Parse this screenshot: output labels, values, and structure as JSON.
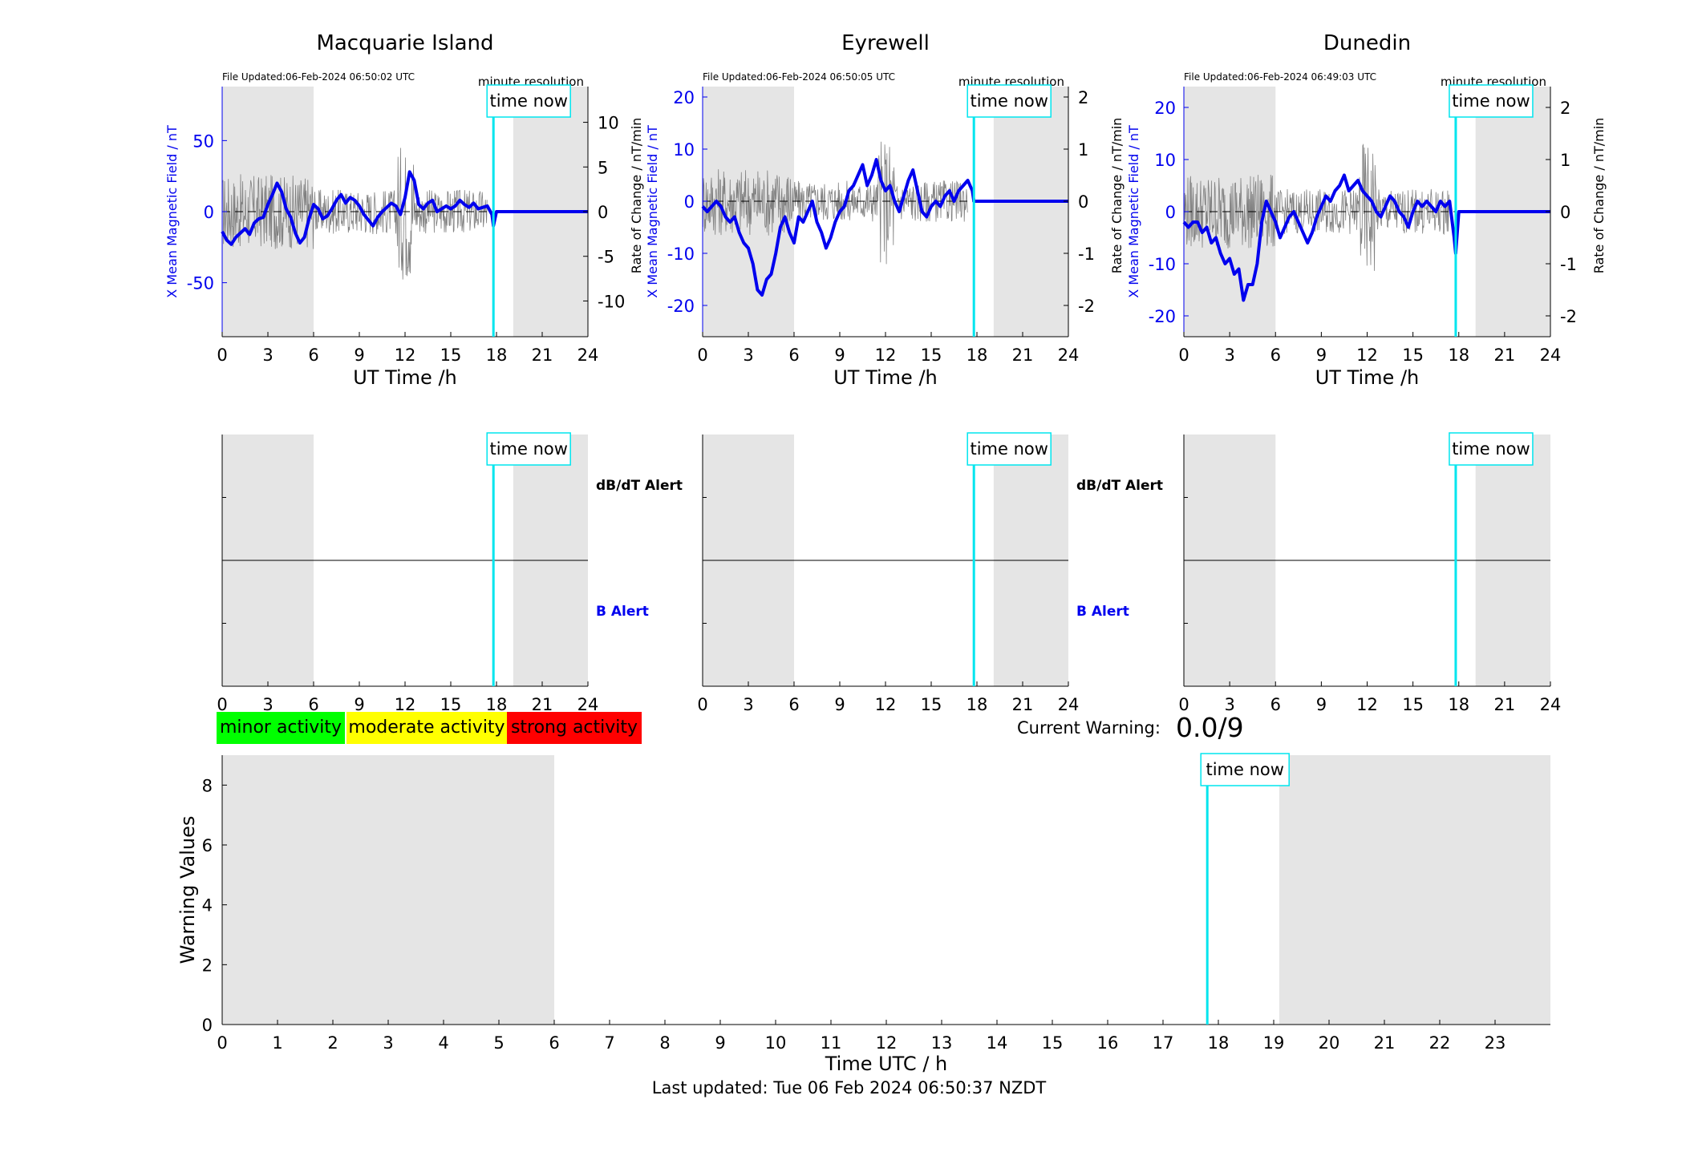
{
  "colors": {
    "magnetic_line": "#0000ee",
    "rate_line": "#808080",
    "time_now": "#00e5ee",
    "night_shade": "#e5e5e5",
    "minor": "#00ff00",
    "moderate": "#ffff00",
    "strong": "#ff0000"
  },
  "time_now_label": "time now",
  "resolution_label": "minute resolution",
  "alert_labels": {
    "dbdt": "dB/dT Alert",
    "b": "B Alert"
  },
  "legend": {
    "minor": "minor activity",
    "moderate": "moderate activity",
    "strong": "strong activity"
  },
  "current_warning": {
    "label": "Current Warning:",
    "value": "0.0/9"
  },
  "footer": "Last updated: Tue 06 Feb 2024 06:50:37 NZDT",
  "chart_data": [
    {
      "type": "line",
      "title": "Macquarie Island",
      "file_updated": "File Updated:06-Feb-2024 06:50:02 UTC",
      "xlabel": "UT Time /h",
      "ylabel": "X Mean Magnetic Field / nT",
      "y2label": "Rate of Change / nT/min",
      "xlim": [
        0,
        24
      ],
      "xticks": [
        0,
        3,
        6,
        9,
        12,
        15,
        18,
        21,
        24
      ],
      "ylim": [
        -88,
        88
      ],
      "yticks": [
        -50,
        0,
        50
      ],
      "y2lim": [
        -14,
        14
      ],
      "y2ticks": [
        -10,
        -5,
        0,
        5,
        10
      ],
      "time_now": 17.8,
      "night_periods": [
        [
          0,
          6
        ],
        [
          19.1,
          24
        ]
      ],
      "series": [
        {
          "x": [
            0,
            0.3,
            0.6,
            0.9,
            1.2,
            1.5,
            1.8,
            2.1,
            2.4,
            2.7,
            3.0,
            3.3,
            3.6,
            3.9,
            4.2,
            4.5,
            4.8,
            5.1,
            5.4,
            5.7,
            6.0,
            6.3,
            6.6,
            6.9,
            7.2,
            7.5,
            7.8,
            8.1,
            8.4,
            8.7,
            9.0,
            9.3,
            9.6,
            9.9,
            10.2,
            10.5,
            10.8,
            11.1,
            11.4,
            11.7,
            12.0,
            12.3,
            12.6,
            12.9,
            13.2,
            13.5,
            13.8,
            14.1,
            14.4,
            14.7,
            15.0,
            15.3,
            15.6,
            15.9,
            16.2,
            16.5,
            16.8,
            17.1,
            17.4,
            17.7,
            17.8,
            18.0,
            21.0,
            24.0
          ],
          "y": [
            -14,
            -20,
            -23,
            -18,
            -15,
            -12,
            -16,
            -8,
            -5,
            -4,
            5,
            12,
            20,
            14,
            2,
            -4,
            -15,
            -22,
            -18,
            -5,
            5,
            2,
            -5,
            -3,
            2,
            8,
            12,
            6,
            10,
            8,
            4,
            -2,
            -6,
            -10,
            -4,
            0,
            3,
            6,
            4,
            -2,
            10,
            28,
            22,
            5,
            2,
            6,
            8,
            0,
            2,
            4,
            2,
            4,
            8,
            5,
            3,
            6,
            2,
            3,
            4,
            -2,
            -10,
            0,
            0,
            0
          ]
        }
      ]
    },
    {
      "type": "line",
      "title": "Eyrewell",
      "file_updated": "File Updated:06-Feb-2024 06:50:05 UTC",
      "xlabel": "UT Time /h",
      "ylabel": "X Mean Magnetic Field / nT",
      "y2label": "Rate of Change / nT/min",
      "xlim": [
        0,
        24
      ],
      "xticks": [
        0,
        3,
        6,
        9,
        12,
        15,
        18,
        21,
        24
      ],
      "ylim": [
        -26,
        22
      ],
      "yticks": [
        -20,
        -10,
        0,
        10,
        20
      ],
      "y2lim": [
        -2.6,
        2.2
      ],
      "y2ticks": [
        -2,
        -1,
        0,
        1,
        2
      ],
      "time_now": 17.8,
      "night_periods": [
        [
          0,
          6
        ],
        [
          19.1,
          24
        ]
      ],
      "series": [
        {
          "x": [
            0,
            0.3,
            0.6,
            0.9,
            1.2,
            1.5,
            1.8,
            2.1,
            2.4,
            2.7,
            3.0,
            3.3,
            3.6,
            3.9,
            4.2,
            4.5,
            4.8,
            5.1,
            5.4,
            5.7,
            6.0,
            6.3,
            6.6,
            6.9,
            7.2,
            7.5,
            7.8,
            8.1,
            8.4,
            8.7,
            9.0,
            9.3,
            9.6,
            9.9,
            10.2,
            10.5,
            10.8,
            11.1,
            11.4,
            11.7,
            12.0,
            12.3,
            12.6,
            12.9,
            13.2,
            13.5,
            13.8,
            14.1,
            14.4,
            14.7,
            15.0,
            15.3,
            15.6,
            15.9,
            16.2,
            16.5,
            16.8,
            17.1,
            17.4,
            17.7,
            17.8,
            18.0,
            21.0,
            24.0
          ],
          "y": [
            -1,
            -2,
            -1,
            0,
            -1,
            -3,
            -4,
            -3,
            -6,
            -8,
            -9,
            -12,
            -17,
            -18,
            -15,
            -14,
            -10,
            -5,
            -3,
            -6,
            -8,
            -3,
            -4,
            -2,
            0,
            -4,
            -6,
            -9,
            -7,
            -4,
            -2,
            -1,
            2,
            3,
            5,
            7,
            3,
            5,
            8,
            4,
            2,
            3,
            0,
            -2,
            1,
            4,
            6,
            2,
            -2,
            -3,
            -1,
            0,
            -1,
            1,
            2,
            0,
            2,
            3,
            4,
            2,
            0,
            0,
            0,
            0
          ]
        }
      ]
    },
    {
      "type": "line",
      "title": "Dunedin",
      "file_updated": "File Updated:06-Feb-2024 06:49:03 UTC",
      "xlabel": "UT Time /h",
      "ylabel": "X Mean Magnetic Field / nT",
      "y2label": "Rate of Change / nT/min",
      "xlim": [
        0,
        24
      ],
      "xticks": [
        0,
        3,
        6,
        9,
        12,
        15,
        18,
        21,
        24
      ],
      "ylim": [
        -24,
        24
      ],
      "yticks": [
        -20,
        -10,
        0,
        10,
        20
      ],
      "y2lim": [
        -2.4,
        2.4
      ],
      "y2ticks": [
        -2,
        -1,
        0,
        1,
        2
      ],
      "time_now": 17.8,
      "night_periods": [
        [
          0,
          6
        ],
        [
          19.1,
          24
        ]
      ],
      "series": [
        {
          "x": [
            0,
            0.3,
            0.6,
            0.9,
            1.2,
            1.5,
            1.8,
            2.1,
            2.4,
            2.7,
            3.0,
            3.3,
            3.6,
            3.9,
            4.2,
            4.5,
            4.8,
            5.1,
            5.4,
            5.7,
            6.0,
            6.3,
            6.6,
            6.9,
            7.2,
            7.5,
            7.8,
            8.1,
            8.4,
            8.7,
            9.0,
            9.3,
            9.6,
            9.9,
            10.2,
            10.5,
            10.8,
            11.1,
            11.4,
            11.7,
            12.0,
            12.3,
            12.6,
            12.9,
            13.2,
            13.5,
            13.8,
            14.1,
            14.4,
            14.7,
            15.0,
            15.3,
            15.6,
            15.9,
            16.2,
            16.5,
            16.8,
            17.1,
            17.4,
            17.7,
            17.8,
            18.0,
            21.0,
            24.0
          ],
          "y": [
            -2,
            -3,
            -2,
            -2,
            -4,
            -3,
            -6,
            -5,
            -8,
            -10,
            -9,
            -12,
            -11,
            -17,
            -14,
            -14,
            -10,
            -2,
            2,
            0,
            -2,
            -5,
            -3,
            -1,
            0,
            -2,
            -4,
            -6,
            -4,
            -1,
            1,
            3,
            2,
            4,
            5,
            7,
            4,
            5,
            6,
            4,
            3,
            2,
            0,
            -1,
            1,
            3,
            2,
            0,
            -1,
            -3,
            0,
            2,
            1,
            2,
            1,
            0,
            2,
            1,
            2,
            -5,
            -8,
            0,
            0,
            0
          ]
        }
      ]
    },
    {
      "type": "line",
      "title": "",
      "xlabel": "UT Time /h",
      "ylabel": "",
      "xlim": [
        0,
        24
      ],
      "xticks": [
        0,
        3,
        6,
        9,
        12,
        15,
        18,
        21,
        24
      ],
      "time_now": 17.8,
      "night_periods": [
        [
          0,
          6
        ],
        [
          19.1,
          24
        ]
      ],
      "alerts": []
    },
    {
      "type": "line",
      "title": "",
      "xlabel": "",
      "ylabel": "",
      "xlim": [
        0,
        24
      ],
      "xticks": [
        0,
        3,
        6,
        9,
        12,
        15,
        18,
        21,
        24
      ],
      "time_now": 17.8,
      "night_periods": [
        [
          0,
          6
        ],
        [
          19.1,
          24
        ]
      ],
      "alerts": []
    },
    {
      "type": "line",
      "title": "",
      "xlabel": "",
      "ylabel": "",
      "xlim": [
        0,
        24
      ],
      "xticks": [
        0,
        3,
        6,
        9,
        12,
        15,
        18,
        21,
        24
      ],
      "time_now": 17.8,
      "night_periods": [
        [
          0,
          6
        ],
        [
          19.1,
          24
        ]
      ],
      "alerts": []
    },
    {
      "type": "bar",
      "title": "",
      "xlabel": "Time UTC / h",
      "ylabel": "Warning Values",
      "xlim": [
        0,
        24
      ],
      "xticks": [
        0,
        1,
        2,
        3,
        4,
        5,
        6,
        7,
        8,
        9,
        10,
        11,
        12,
        13,
        14,
        15,
        16,
        17,
        18,
        19,
        20,
        21,
        22,
        23
      ],
      "ylim": [
        0,
        9
      ],
      "yticks": [
        0,
        2,
        4,
        6,
        8
      ],
      "time_now": 17.8,
      "night_periods": [
        [
          0,
          6
        ],
        [
          19.1,
          24
        ]
      ],
      "values": []
    }
  ]
}
